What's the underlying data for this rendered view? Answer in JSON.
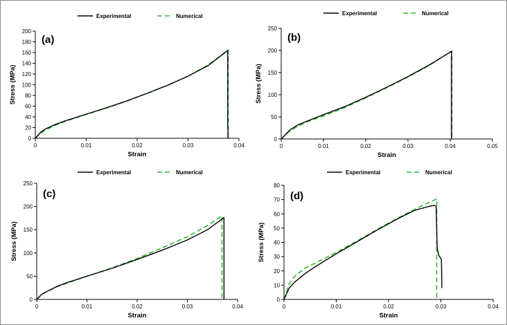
{
  "chart_data": [
    {
      "type": "line",
      "panel_label": "(a)",
      "xlabel": "Strain",
      "ylabel": "Stress  (MPa)",
      "xlim": [
        0,
        0.04
      ],
      "ylim": [
        0,
        200
      ],
      "xticks": [
        "0",
        "0.01",
        "0.02",
        "0.03",
        "0.04"
      ],
      "yticks": [
        "0",
        "20",
        "40",
        "60",
        "80",
        "100",
        "120",
        "140",
        "160",
        "180",
        "200"
      ],
      "legend": [
        "Experimental",
        "Numerical"
      ],
      "grid": false,
      "series": [
        {
          "name": "Experimental",
          "color": "#000000",
          "style": "solid",
          "x": [
            0,
            0.001,
            0.002,
            0.004,
            0.006,
            0.008,
            0.01,
            0.014,
            0.018,
            0.022,
            0.026,
            0.03,
            0.034,
            0.0378,
            0.0378,
            0.03785
          ],
          "y": [
            0,
            11,
            17.5,
            26,
            33,
            39,
            45,
            57,
            70,
            84,
            99,
            116,
            136,
            164,
            30,
            0
          ]
        },
        {
          "name": "Numerical",
          "color": "#2EB82E",
          "style": "dashed",
          "x": [
            0,
            0.001,
            0.002,
            0.004,
            0.006,
            0.008,
            0.01,
            0.014,
            0.018,
            0.022,
            0.026,
            0.03,
            0.034,
            0.0379,
            0.0379
          ],
          "y": [
            0,
            9,
            15.5,
            24.5,
            32,
            38.5,
            44.5,
            56.5,
            69.5,
            84,
            99,
            116,
            137,
            165,
            0
          ]
        }
      ]
    },
    {
      "type": "line",
      "panel_label": "(b)",
      "xlabel": "Strain",
      "ylabel": "Stress  (MPa)",
      "xlim": [
        0,
        0.05
      ],
      "ylim": [
        0,
        250
      ],
      "xticks": [
        "0",
        "0.01",
        "0.02",
        "0.03",
        "0.04",
        "0.05"
      ],
      "yticks": [
        "0",
        "50",
        "100",
        "150",
        "200",
        "250"
      ],
      "legend": [
        "Experimental",
        "Numerical"
      ],
      "grid": false,
      "series": [
        {
          "name": "Experimental",
          "color": "#000000",
          "style": "solid",
          "x": [
            0,
            0.001,
            0.002,
            0.004,
            0.006,
            0.01,
            0.015,
            0.02,
            0.025,
            0.03,
            0.035,
            0.0403,
            0.0403
          ],
          "y": [
            0,
            10,
            20,
            32,
            40,
            55,
            73,
            94,
            117,
            141,
            167,
            198,
            0
          ]
        },
        {
          "name": "Numerical",
          "color": "#2EB82E",
          "style": "dashed",
          "x": [
            0,
            0.001,
            0.002,
            0.004,
            0.006,
            0.01,
            0.015,
            0.02,
            0.025,
            0.03,
            0.035,
            0.0404,
            0.0404
          ],
          "y": [
            0,
            9,
            18,
            29,
            38,
            52,
            71,
            93,
            116,
            140,
            166,
            199,
            0
          ]
        }
      ]
    },
    {
      "type": "line",
      "panel_label": "(c)",
      "xlabel": "Strain",
      "ylabel": "Stress  (MPa)",
      "xlim": [
        0,
        0.04
      ],
      "ylim": [
        0,
        250
      ],
      "xticks": [
        "0",
        "0.01",
        "0.02",
        "0.03",
        "0.04"
      ],
      "yticks": [
        "0",
        "50",
        "100",
        "150",
        "200",
        "250"
      ],
      "legend": [
        "Experimental",
        "Numerical"
      ],
      "grid": false,
      "series": [
        {
          "name": "Experimental",
          "color": "#000000",
          "style": "solid",
          "x": [
            0,
            0.001,
            0.002,
            0.004,
            0.006,
            0.01,
            0.015,
            0.02,
            0.025,
            0.03,
            0.034,
            0.0373,
            0.0373
          ],
          "y": [
            0,
            11,
            17,
            28,
            36,
            50,
            67,
            86,
            106,
            128,
            150,
            176,
            0
          ]
        },
        {
          "name": "Numerical",
          "color": "#2EB82E",
          "style": "dashed",
          "x": [
            0,
            0.001,
            0.002,
            0.004,
            0.006,
            0.01,
            0.015,
            0.02,
            0.025,
            0.03,
            0.034,
            0.0369,
            0.0369
          ],
          "y": [
            0,
            10,
            17,
            27,
            35,
            50,
            68,
            88,
            111,
            135,
            159,
            180,
            0
          ]
        }
      ]
    },
    {
      "type": "line",
      "panel_label": "(d)",
      "xlabel": "Strain",
      "ylabel": "Stress  (MPa)",
      "xlim": [
        0,
        0.04
      ],
      "ylim": [
        0,
        80
      ],
      "xticks": [
        "0",
        "0.01",
        "0.02",
        "0.03",
        "0.04"
      ],
      "yticks": [
        "0",
        "10",
        "20",
        "30",
        "40",
        "50",
        "60",
        "70",
        "80"
      ],
      "legend": [
        "Experimental",
        "Numerical"
      ],
      "grid": false,
      "series": [
        {
          "name": "Experimental",
          "color": "#000000",
          "style": "solid",
          "x": [
            0,
            0.001,
            0.002,
            0.004,
            0.006,
            0.01,
            0.014,
            0.018,
            0.022,
            0.025,
            0.027,
            0.028,
            0.0288,
            0.0291,
            0.0293,
            0.0296,
            0.0301,
            0.0302
          ],
          "y": [
            0,
            8,
            12,
            18,
            23,
            32,
            40.5,
            49,
            57,
            62.5,
            64.5,
            65.5,
            66,
            65,
            36,
            31,
            28,
            8
          ]
        },
        {
          "name": "Numerical",
          "color": "#2EB82E",
          "style": "dashed",
          "x": [
            0,
            0.001,
            0.002,
            0.004,
            0.006,
            0.01,
            0.014,
            0.018,
            0.022,
            0.026,
            0.0292,
            0.0292
          ],
          "y": [
            0,
            11,
            16,
            22,
            25.5,
            33,
            41,
            49.5,
            57.5,
            65,
            70.5,
            0
          ]
        }
      ]
    }
  ]
}
